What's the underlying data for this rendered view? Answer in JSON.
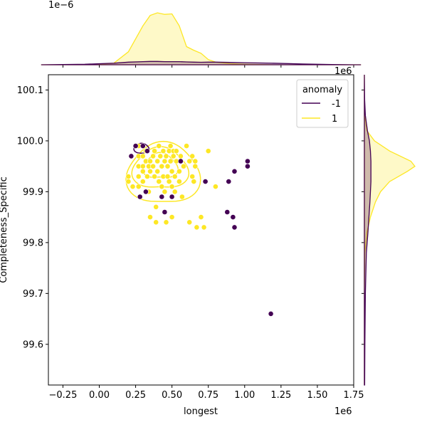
{
  "chart_data": {
    "type": "scatter",
    "title": "",
    "xlabel": "longest",
    "ylabel": "Completeness_Specific",
    "x_offset_label": "1e6",
    "y_offset_label": "",
    "xlim": [
      -0.35,
      1.75
    ],
    "ylim": [
      99.52,
      100.13
    ],
    "x_ticks": [
      -0.25,
      0.0,
      0.25,
      0.5,
      0.75,
      1.0,
      1.25,
      1.5,
      1.75
    ],
    "x_tick_labels": [
      "−0.25",
      "0.00",
      "0.25",
      "0.50",
      "0.75",
      "1.00",
      "1.25",
      "1.50",
      "1.75"
    ],
    "y_ticks": [
      99.6,
      99.7,
      99.8,
      99.9,
      100.0,
      100.1
    ],
    "y_tick_labels": [
      "99.6",
      "99.7",
      "99.8",
      "99.9",
      "100.0",
      "100.1"
    ],
    "top_marginal_offset_label": "1e−6",
    "right_marginal_offset_label": "1e6",
    "legend": {
      "title": "anomaly",
      "placement": "top-right",
      "entries": [
        {
          "label": "-1",
          "color": "#440154"
        },
        {
          "label": "1",
          "color": "#fde725"
        }
      ]
    },
    "series": [
      {
        "name": "-1",
        "color": "#440154",
        "points": [
          [
            0.22,
            99.97
          ],
          [
            0.25,
            99.99
          ],
          [
            0.3,
            99.99
          ],
          [
            0.33,
            99.98
          ],
          [
            0.28,
            99.89
          ],
          [
            0.32,
            99.9
          ],
          [
            0.43,
            99.89
          ],
          [
            0.45,
            99.86
          ],
          [
            0.5,
            99.89
          ],
          [
            0.56,
            99.96
          ],
          [
            0.73,
            99.92
          ],
          [
            0.88,
            99.86
          ],
          [
            0.92,
            99.85
          ],
          [
            0.93,
            99.83
          ],
          [
            0.93,
            99.94
          ],
          [
            0.89,
            99.92
          ],
          [
            1.02,
            99.96
          ],
          [
            1.02,
            99.95
          ],
          [
            1.18,
            99.66
          ]
        ]
      },
      {
        "name": "1",
        "color": "#fde725",
        "points": [
          [
            0.2,
            99.93
          ],
          [
            0.2,
            99.92
          ],
          [
            0.23,
            99.91
          ],
          [
            0.27,
            99.99
          ],
          [
            0.27,
            99.97
          ],
          [
            0.27,
            99.95
          ],
          [
            0.27,
            99.93
          ],
          [
            0.27,
            99.91
          ],
          [
            0.3,
            99.97
          ],
          [
            0.3,
            99.95
          ],
          [
            0.3,
            99.94
          ],
          [
            0.3,
            99.92
          ],
          [
            0.32,
            99.98
          ],
          [
            0.32,
            99.96
          ],
          [
            0.33,
            99.93
          ],
          [
            0.34,
            99.95
          ],
          [
            0.34,
            99.9
          ],
          [
            0.35,
            99.96
          ],
          [
            0.35,
            99.94
          ],
          [
            0.35,
            99.85
          ],
          [
            0.37,
            99.97
          ],
          [
            0.37,
            99.95
          ],
          [
            0.38,
            99.98
          ],
          [
            0.38,
            99.93
          ],
          [
            0.39,
            99.87
          ],
          [
            0.39,
            99.84
          ],
          [
            0.4,
            99.96
          ],
          [
            0.4,
            99.94
          ],
          [
            0.41,
            99.99
          ],
          [
            0.41,
            99.92
          ],
          [
            0.42,
            99.97
          ],
          [
            0.43,
            99.95
          ],
          [
            0.43,
            99.91
          ],
          [
            0.44,
            99.98
          ],
          [
            0.44,
            99.93
          ],
          [
            0.45,
            99.96
          ],
          [
            0.45,
            99.9
          ],
          [
            0.46,
            99.97
          ],
          [
            0.46,
            99.84
          ],
          [
            0.47,
            99.95
          ],
          [
            0.47,
            99.93
          ],
          [
            0.48,
            99.98
          ],
          [
            0.48,
            99.92
          ],
          [
            0.49,
            99.99
          ],
          [
            0.49,
            99.96
          ],
          [
            0.5,
            99.94
          ],
          [
            0.5,
            99.91
          ],
          [
            0.5,
            99.85
          ],
          [
            0.51,
            99.98
          ],
          [
            0.51,
            99.97
          ],
          [
            0.52,
            99.93
          ],
          [
            0.52,
            99.9
          ],
          [
            0.53,
            99.96
          ],
          [
            0.53,
            99.98
          ],
          [
            0.55,
            99.94
          ],
          [
            0.55,
            99.92
          ],
          [
            0.56,
            99.97
          ],
          [
            0.57,
            99.89
          ],
          [
            0.58,
            99.95
          ],
          [
            0.6,
            99.99
          ],
          [
            0.62,
            99.96
          ],
          [
            0.62,
            99.84
          ],
          [
            0.64,
            99.97
          ],
          [
            0.64,
            99.93
          ],
          [
            0.65,
            99.92
          ],
          [
            0.66,
            99.95
          ],
          [
            0.66,
            99.96
          ],
          [
            0.67,
            99.83
          ],
          [
            0.7,
            99.85
          ],
          [
            0.72,
            99.83
          ],
          [
            0.75,
            99.98
          ],
          [
            0.8,
            99.91
          ]
        ]
      }
    ],
    "kde_levels_yellow": [
      {
        "center": [
          0.44,
          99.935
        ],
        "rx": 0.24,
        "ry": 0.062
      },
      {
        "center": [
          0.42,
          99.945
        ],
        "rx": 0.18,
        "ry": 0.042
      },
      {
        "center": [
          0.42,
          99.95
        ],
        "rx": 0.11,
        "ry": 0.026
      }
    ],
    "kde_levels_purple": [
      {
        "center": [
          0.29,
          99.985
        ],
        "rx": 0.05,
        "ry": 0.01
      }
    ],
    "marginal_x": {
      "grid": [
        -0.4,
        -0.25,
        -0.1,
        0.0,
        0.1,
        0.2,
        0.3,
        0.35,
        0.4,
        0.45,
        0.5,
        0.55,
        0.6,
        0.65,
        0.7,
        0.75,
        0.8,
        0.9,
        1.0,
        1.2,
        1.4,
        1.6,
        1.8
      ],
      "density_1": [
        0,
        0,
        0,
        0.01,
        0.03,
        0.25,
        0.75,
        0.95,
        1.0,
        0.97,
        0.98,
        0.75,
        0.35,
        0.28,
        0.22,
        0.1,
        0.05,
        0.02,
        0.01,
        0,
        0,
        0,
        0
      ],
      "density_neg1": [
        0,
        0.005,
        0.01,
        0.02,
        0.03,
        0.05,
        0.06,
        0.065,
        0.065,
        0.06,
        0.06,
        0.06,
        0.055,
        0.05,
        0.048,
        0.05,
        0.05,
        0.045,
        0.04,
        0.03,
        0.015,
        0.005,
        0
      ]
    },
    "marginal_y": {
      "grid": [
        99.52,
        99.6,
        99.7,
        99.78,
        99.82,
        99.85,
        99.88,
        99.9,
        99.92,
        99.94,
        99.95,
        99.96,
        99.98,
        100.0,
        100.02,
        100.05,
        100.08,
        100.13
      ],
      "density_1": [
        0,
        0,
        0,
        0.01,
        0.05,
        0.12,
        0.22,
        0.32,
        0.5,
        0.85,
        1.0,
        0.92,
        0.5,
        0.2,
        0.05,
        0.01,
        0,
        0
      ],
      "density_neg1": [
        0.005,
        0.01,
        0.02,
        0.04,
        0.07,
        0.09,
        0.11,
        0.12,
        0.13,
        0.13,
        0.13,
        0.13,
        0.12,
        0.1,
        0.06,
        0.02,
        0.005,
        0
      ]
    }
  }
}
